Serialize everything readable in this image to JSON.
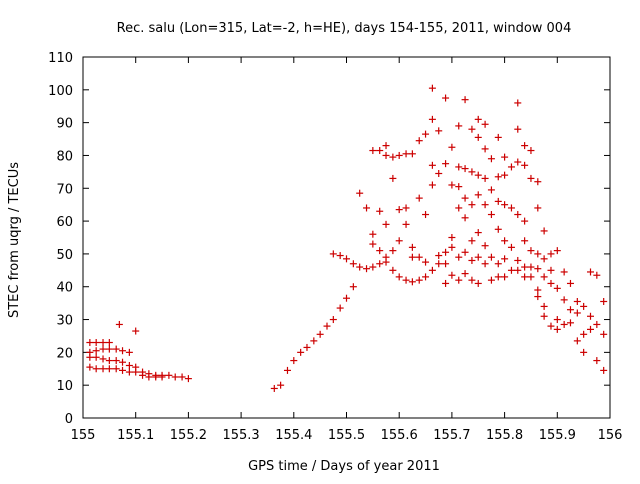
{
  "chart_data": {
    "type": "scatter",
    "title": "Rec. salu (Lon=315, Lat=-2, h=HE), days 154-155, 2011, window 004",
    "xlabel": "GPS time / Days of year 2011",
    "ylabel": "STEC from uqrg / TECUs",
    "xlim": [
      155,
      156
    ],
    "ylim": [
      0,
      110
    ],
    "xticks": [
      "155",
      "155.1",
      "155.2",
      "155.3",
      "155.4",
      "155.5",
      "155.6",
      "155.7",
      "155.8",
      "155.9",
      "156"
    ],
    "yticks": [
      "0",
      "10",
      "20",
      "30",
      "40",
      "50",
      "60",
      "70",
      "80",
      "90",
      "100",
      "110"
    ],
    "grid": false,
    "marker": "+",
    "marker_color": "#cc0000",
    "series": [
      {
        "points": [
          [
            155.013,
            23
          ],
          [
            155.013,
            20
          ],
          [
            155.013,
            18.5
          ],
          [
            155.013,
            15.5
          ],
          [
            155.025,
            23
          ],
          [
            155.025,
            20.5
          ],
          [
            155.025,
            18.5
          ],
          [
            155.025,
            15
          ],
          [
            155.038,
            23
          ],
          [
            155.038,
            21
          ],
          [
            155.038,
            18
          ],
          [
            155.038,
            15
          ],
          [
            155.05,
            23
          ],
          [
            155.05,
            21
          ],
          [
            155.05,
            17.5
          ],
          [
            155.05,
            15
          ],
          [
            155.063,
            21
          ],
          [
            155.063,
            17.5
          ],
          [
            155.063,
            15
          ],
          [
            155.069,
            28.5
          ],
          [
            155.075,
            20.5
          ],
          [
            155.075,
            17
          ],
          [
            155.075,
            14.5
          ],
          [
            155.088,
            20
          ],
          [
            155.088,
            16
          ],
          [
            155.088,
            14
          ],
          [
            155.1,
            26.5
          ],
          [
            155.1,
            15.5
          ],
          [
            155.1,
            14
          ],
          [
            155.113,
            14
          ],
          [
            155.113,
            13
          ],
          [
            155.125,
            13.5
          ],
          [
            155.125,
            12.5
          ],
          [
            155.138,
            13
          ],
          [
            155.138,
            12.5
          ],
          [
            155.15,
            13
          ],
          [
            155.15,
            12.5
          ],
          [
            155.163,
            13
          ],
          [
            155.175,
            12.5
          ],
          [
            155.188,
            12.5
          ],
          [
            155.2,
            12
          ],
          [
            155.363,
            9
          ],
          [
            155.375,
            10
          ],
          [
            155.388,
            14.5
          ],
          [
            155.4,
            17.5
          ],
          [
            155.413,
            20
          ],
          [
            155.425,
            21.5
          ],
          [
            155.438,
            23.5
          ],
          [
            155.45,
            25.5
          ],
          [
            155.463,
            28
          ],
          [
            155.475,
            50
          ],
          [
            155.475,
            30
          ],
          [
            155.488,
            49.5
          ],
          [
            155.488,
            33.5
          ],
          [
            155.5,
            48.5
          ],
          [
            155.5,
            36.5
          ],
          [
            155.513,
            47
          ],
          [
            155.513,
            40
          ],
          [
            155.525,
            68.5
          ],
          [
            155.525,
            46
          ],
          [
            155.538,
            64
          ],
          [
            155.538,
            45.5
          ],
          [
            155.55,
            81.5
          ],
          [
            155.55,
            56
          ],
          [
            155.55,
            53
          ],
          [
            155.55,
            46
          ],
          [
            155.563,
            81.5
          ],
          [
            155.563,
            63
          ],
          [
            155.563,
            51
          ],
          [
            155.563,
            47
          ],
          [
            155.575,
            83
          ],
          [
            155.575,
            80
          ],
          [
            155.575,
            59
          ],
          [
            155.575,
            49
          ],
          [
            155.575,
            47.5
          ],
          [
            155.588,
            79.5
          ],
          [
            155.588,
            73
          ],
          [
            155.588,
            51
          ],
          [
            155.588,
            45
          ],
          [
            155.6,
            80
          ],
          [
            155.6,
            63.5
          ],
          [
            155.6,
            54
          ],
          [
            155.6,
            43
          ],
          [
            155.613,
            80.5
          ],
          [
            155.613,
            64
          ],
          [
            155.613,
            59
          ],
          [
            155.613,
            42
          ],
          [
            155.625,
            80.5
          ],
          [
            155.625,
            52
          ],
          [
            155.625,
            49
          ],
          [
            155.625,
            41.5
          ],
          [
            155.638,
            84.5
          ],
          [
            155.638,
            67
          ],
          [
            155.638,
            49
          ],
          [
            155.638,
            42
          ],
          [
            155.65,
            86.5
          ],
          [
            155.65,
            62
          ],
          [
            155.65,
            47.5
          ],
          [
            155.65,
            43
          ],
          [
            155.663,
            100.5
          ],
          [
            155.663,
            91
          ],
          [
            155.663,
            77
          ],
          [
            155.663,
            71
          ],
          [
            155.663,
            45
          ],
          [
            155.675,
            87.5
          ],
          [
            155.675,
            74.5
          ],
          [
            155.675,
            49.5
          ],
          [
            155.675,
            47
          ],
          [
            155.688,
            97.5
          ],
          [
            155.688,
            77.5
          ],
          [
            155.688,
            50.5
          ],
          [
            155.688,
            47
          ],
          [
            155.688,
            41
          ],
          [
            155.7,
            82.5
          ],
          [
            155.7,
            71
          ],
          [
            155.7,
            55
          ],
          [
            155.7,
            52
          ],
          [
            155.7,
            43.5
          ],
          [
            155.713,
            89
          ],
          [
            155.713,
            76.5
          ],
          [
            155.713,
            70.5
          ],
          [
            155.713,
            64
          ],
          [
            155.713,
            49
          ],
          [
            155.713,
            42
          ],
          [
            155.725,
            97
          ],
          [
            155.725,
            76
          ],
          [
            155.725,
            67
          ],
          [
            155.725,
            61
          ],
          [
            155.725,
            50.5
          ],
          [
            155.725,
            44
          ],
          [
            155.738,
            88
          ],
          [
            155.738,
            75
          ],
          [
            155.738,
            65
          ],
          [
            155.738,
            54
          ],
          [
            155.738,
            48
          ],
          [
            155.738,
            42
          ],
          [
            155.75,
            91
          ],
          [
            155.75,
            85.5
          ],
          [
            155.75,
            74
          ],
          [
            155.75,
            68
          ],
          [
            155.75,
            56.5
          ],
          [
            155.75,
            49
          ],
          [
            155.75,
            41
          ],
          [
            155.763,
            89.5
          ],
          [
            155.763,
            82
          ],
          [
            155.763,
            73
          ],
          [
            155.763,
            65
          ],
          [
            155.763,
            52.5
          ],
          [
            155.763,
            47
          ],
          [
            155.775,
            79
          ],
          [
            155.775,
            69.5
          ],
          [
            155.775,
            62
          ],
          [
            155.775,
            49
          ],
          [
            155.775,
            42
          ],
          [
            155.788,
            85.5
          ],
          [
            155.788,
            73.5
          ],
          [
            155.788,
            66
          ],
          [
            155.788,
            57.5
          ],
          [
            155.788,
            47
          ],
          [
            155.788,
            43
          ],
          [
            155.8,
            79.5
          ],
          [
            155.8,
            74
          ],
          [
            155.8,
            65
          ],
          [
            155.8,
            54
          ],
          [
            155.8,
            48.5
          ],
          [
            155.8,
            43
          ],
          [
            155.813,
            76.5
          ],
          [
            155.813,
            64
          ],
          [
            155.813,
            52
          ],
          [
            155.813,
            45
          ],
          [
            155.825,
            96
          ],
          [
            155.825,
            88
          ],
          [
            155.825,
            78
          ],
          [
            155.825,
            62
          ],
          [
            155.825,
            48
          ],
          [
            155.825,
            45
          ],
          [
            155.838,
            83
          ],
          [
            155.838,
            77
          ],
          [
            155.838,
            60
          ],
          [
            155.838,
            54
          ],
          [
            155.838,
            46
          ],
          [
            155.838,
            43
          ],
          [
            155.85,
            81.5
          ],
          [
            155.85,
            73
          ],
          [
            155.85,
            51
          ],
          [
            155.85,
            46
          ],
          [
            155.85,
            43
          ],
          [
            155.863,
            72
          ],
          [
            155.863,
            64
          ],
          [
            155.863,
            50
          ],
          [
            155.863,
            45.5
          ],
          [
            155.863,
            39
          ],
          [
            155.863,
            37
          ],
          [
            155.875,
            57
          ],
          [
            155.875,
            48.5
          ],
          [
            155.875,
            43
          ],
          [
            155.875,
            34
          ],
          [
            155.875,
            31
          ],
          [
            155.888,
            50
          ],
          [
            155.888,
            45
          ],
          [
            155.888,
            41
          ],
          [
            155.888,
            28
          ],
          [
            155.9,
            51
          ],
          [
            155.9,
            39.5
          ],
          [
            155.9,
            30
          ],
          [
            155.9,
            27
          ],
          [
            155.913,
            44.5
          ],
          [
            155.913,
            36
          ],
          [
            155.913,
            28.5
          ],
          [
            155.925,
            41
          ],
          [
            155.925,
            33
          ],
          [
            155.925,
            29
          ],
          [
            155.938,
            35.5
          ],
          [
            155.938,
            32
          ],
          [
            155.938,
            23.5
          ],
          [
            155.95,
            34
          ],
          [
            155.95,
            25.5
          ],
          [
            155.95,
            20
          ],
          [
            155.963,
            44.5
          ],
          [
            155.963,
            31
          ],
          [
            155.963,
            27
          ],
          [
            155.975,
            43.5
          ],
          [
            155.975,
            28.5
          ],
          [
            155.975,
            17.5
          ],
          [
            155.988,
            35.5
          ],
          [
            155.988,
            25.5
          ],
          [
            155.988,
            14.5
          ]
        ]
      }
    ]
  }
}
